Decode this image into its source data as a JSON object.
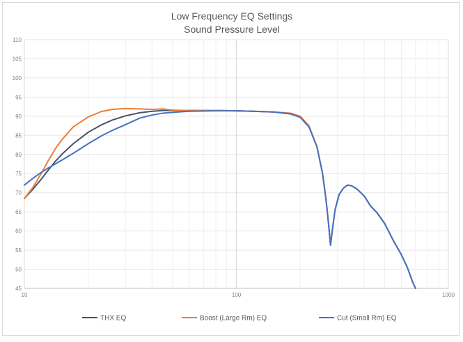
{
  "chart_data": {
    "type": "line",
    "title": "Low Frequency EQ Settings",
    "subtitle": "Sound Pressure Level",
    "xlabel": "",
    "ylabel": "",
    "x_scale": "log",
    "xlim": [
      10,
      1000
    ],
    "ylim": [
      45,
      110
    ],
    "x_ticks": [
      10,
      100,
      1000
    ],
    "x_tick_labels": [
      "10",
      "100",
      "1000"
    ],
    "y_ticks": [
      45,
      50,
      55,
      60,
      65,
      70,
      75,
      80,
      85,
      90,
      95,
      100,
      105,
      110
    ],
    "y_tick_labels": [
      "45",
      "50",
      "55",
      "60",
      "65",
      "70",
      "75",
      "80",
      "85",
      "90",
      "95",
      "100",
      "105",
      "110"
    ],
    "grid": true,
    "legend_position": "bottom",
    "series": [
      {
        "name": "THX EQ",
        "color": "#44546a",
        "points": [
          [
            10,
            68.5
          ],
          [
            11,
            71
          ],
          [
            12,
            73.5
          ],
          [
            13,
            76
          ],
          [
            14,
            78.2
          ],
          [
            15,
            80
          ],
          [
            17,
            82.8
          ],
          [
            20,
            85.8
          ],
          [
            23,
            87.7
          ],
          [
            26,
            89
          ],
          [
            30,
            90.1
          ],
          [
            35,
            90.9
          ],
          [
            40,
            91.3
          ],
          [
            45,
            91.5
          ],
          [
            50,
            91.5
          ],
          [
            60,
            91.5
          ],
          [
            80,
            91.5
          ],
          [
            100,
            91.4
          ],
          [
            120,
            91.3
          ],
          [
            150,
            91.1
          ],
          [
            180,
            90.6
          ],
          [
            200,
            89.8
          ],
          [
            220,
            87.3
          ],
          [
            240,
            82
          ],
          [
            255,
            75
          ],
          [
            265,
            68
          ],
          [
            272,
            62
          ],
          [
            278,
            56.3
          ],
          [
            284,
            60.5
          ],
          [
            292,
            65.5
          ],
          [
            305,
            69.5
          ],
          [
            320,
            71.2
          ],
          [
            335,
            72
          ],
          [
            350,
            71.8
          ],
          [
            370,
            71
          ],
          [
            400,
            69.2
          ],
          [
            430,
            66.5
          ],
          [
            460,
            64.8
          ],
          [
            500,
            62
          ],
          [
            550,
            57.5
          ],
          [
            600,
            53.8
          ],
          [
            640,
            50.5
          ],
          [
            680,
            46.5
          ],
          [
            700,
            45
          ]
        ]
      },
      {
        "name": "Boost (Large Rm) EQ",
        "color": "#ed7d31",
        "points": [
          [
            10,
            68.5
          ],
          [
            11,
            71.5
          ],
          [
            12,
            75
          ],
          [
            13,
            78.5
          ],
          [
            14,
            81.5
          ],
          [
            15,
            83.8
          ],
          [
            17,
            87.2
          ],
          [
            20,
            89.8
          ],
          [
            23,
            91.2
          ],
          [
            26,
            91.8
          ],
          [
            30,
            92
          ],
          [
            35,
            91.9
          ],
          [
            40,
            91.8
          ],
          [
            45,
            91.9
          ],
          [
            50,
            91.6
          ],
          [
            60,
            91.5
          ],
          [
            80,
            91.5
          ],
          [
            100,
            91.4
          ],
          [
            120,
            91.3
          ],
          [
            150,
            91.1
          ],
          [
            180,
            90.8
          ],
          [
            200,
            90
          ],
          [
            220,
            87.5
          ],
          [
            240,
            82
          ],
          [
            255,
            75
          ],
          [
            265,
            68
          ],
          [
            272,
            62
          ],
          [
            278,
            56.3
          ],
          [
            284,
            60.5
          ],
          [
            292,
            65.5
          ],
          [
            305,
            69.5
          ],
          [
            320,
            71.2
          ],
          [
            335,
            72
          ],
          [
            350,
            71.8
          ],
          [
            370,
            71
          ],
          [
            400,
            69.2
          ],
          [
            430,
            66.5
          ],
          [
            460,
            64.8
          ],
          [
            500,
            62
          ],
          [
            550,
            57.5
          ],
          [
            600,
            53.8
          ],
          [
            640,
            50.5
          ],
          [
            680,
            46.5
          ],
          [
            700,
            45
          ]
        ]
      },
      {
        "name": "Cut (Small Rm) EQ",
        "color": "#4472c4",
        "points": [
          [
            10,
            72
          ],
          [
            11,
            73.8
          ],
          [
            12,
            75.3
          ],
          [
            13,
            76.5
          ],
          [
            15,
            78.5
          ],
          [
            17,
            80.3
          ],
          [
            20,
            82.8
          ],
          [
            23,
            84.8
          ],
          [
            26,
            86.3
          ],
          [
            30,
            87.8
          ],
          [
            35,
            89.5
          ],
          [
            40,
            90.3
          ],
          [
            45,
            90.8
          ],
          [
            50,
            91
          ],
          [
            60,
            91.3
          ],
          [
            80,
            91.4
          ],
          [
            100,
            91.4
          ],
          [
            120,
            91.3
          ],
          [
            150,
            91.1
          ],
          [
            180,
            90.6
          ],
          [
            200,
            89.7
          ],
          [
            220,
            87.2
          ],
          [
            240,
            82
          ],
          [
            255,
            75
          ],
          [
            265,
            68
          ],
          [
            272,
            62
          ],
          [
            278,
            56.3
          ],
          [
            284,
            60.5
          ],
          [
            292,
            65.5
          ],
          [
            305,
            69.5
          ],
          [
            320,
            71.2
          ],
          [
            335,
            72
          ],
          [
            350,
            71.8
          ],
          [
            370,
            71
          ],
          [
            400,
            69.2
          ],
          [
            430,
            66.5
          ],
          [
            460,
            64.8
          ],
          [
            500,
            62
          ],
          [
            550,
            57.5
          ],
          [
            600,
            53.8
          ],
          [
            640,
            50.5
          ],
          [
            680,
            46.5
          ],
          [
            700,
            45
          ]
        ]
      }
    ]
  }
}
